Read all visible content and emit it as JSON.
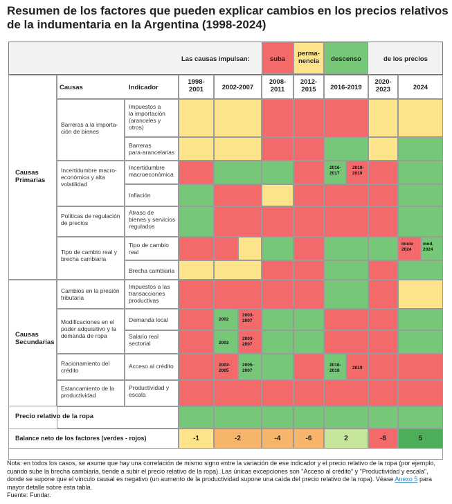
{
  "title": "Resumen de los factores que pueden explicar cambios en los precios relativos de la indumentaria en la Argentina (1998-2024)",
  "legend": {
    "intro": "Las causas impulsan:",
    "up": "suba",
    "stay": "perma-\nnencia",
    "down": "descenso",
    "outro": "de los precios"
  },
  "columns": {
    "causes": "Causas",
    "indicator": "Indicador",
    "periods": [
      "1998-\n2001",
      "2002-2007",
      "2008-\n2011",
      "2012-\n2015",
      "2016-2019",
      "2020-\n2023",
      "2024"
    ]
  },
  "groups": {
    "primary": "Causas\nPrimarias",
    "secondary": "Causas\nSecundarias"
  },
  "causes": [
    "Barreras a la importa-\nción de bienes",
    "Incertidumbre macro-\neconómica y alta\nvolatilidad",
    "Políticas de regulación\nde precios",
    "Tipo de cambio real y\nbrecha cambiaria",
    "Cambios en la presión\ntributaria",
    "Modificaciones en el\npoder adquisitivo y la\ndemanda de ropa",
    "Racionamiento del\ncrédito",
    "Estancamiento de la\nproductividad"
  ],
  "indicators": [
    "Impuestos a\nla importación\n(aranceles y\notros)",
    "Barreras\npara-arancelarias",
    "Incertidumbre\nmacroeconómica",
    "Inflación",
    "Atraso de\nbienes y servicios\nregulados",
    "Tipo de cambio\nreal",
    "Brecha cambiaria",
    "Impuestos a las\ntransacciones\nproductivas",
    "Demanda local",
    "Salario real\nsectorial",
    "Acceso al crédito",
    "Productividad y\nescala"
  ],
  "subperiods": {
    "macro_2016": "2016-\n2017",
    "macro_2018": "2018-\n2019",
    "fx_inicio": "inicio\n2024",
    "fx_med": "med.\n2024",
    "dem_2002": "2002",
    "dem_2003": "2003-\n2007",
    "sal_2002": "2002",
    "sal_2003": "2003-\n2007",
    "cred_2002": "2002-\n2005",
    "cred_2005": "2005-\n2007",
    "cred_2016": "2016-\n2018",
    "cred_2019": "2019"
  },
  "relative_price": {
    "label": "Precio relativo de la ropa"
  },
  "balance": {
    "label": "Balance neto de los factores (verdes - rojos)",
    "values": [
      "-1",
      "-2",
      "-4",
      "-6",
      "2",
      "-8",
      "5"
    ]
  },
  "note": {
    "text": "Nota: en todos los casos, se asume que hay una correlación de mismo signo entre la variación de ese indicador y el precio relativo de la ropa (por ejemplo, cuando sube la brecha cambiaria, tiende a subir el precio relativo de la ropa). Las únicas excepciones son \"Acceso al crédito\" y \"Productividad y escala\", donde se supone que el vínculo causal es negativo (un aumento de la productividad supone una caída del precio relativo de la ropa). Véase",
    "link": "Anexo 5",
    "after": "para mayor detalle sobre esta tabla.",
    "source": "Fuente: Fundar."
  },
  "colors": {
    "red": "#f46a6a",
    "green": "#76c878",
    "yellow": "#fde38a",
    "orange": "#f7b56b",
    "light_green": "#c5e59b",
    "dark_green": "#4dae5a"
  }
}
